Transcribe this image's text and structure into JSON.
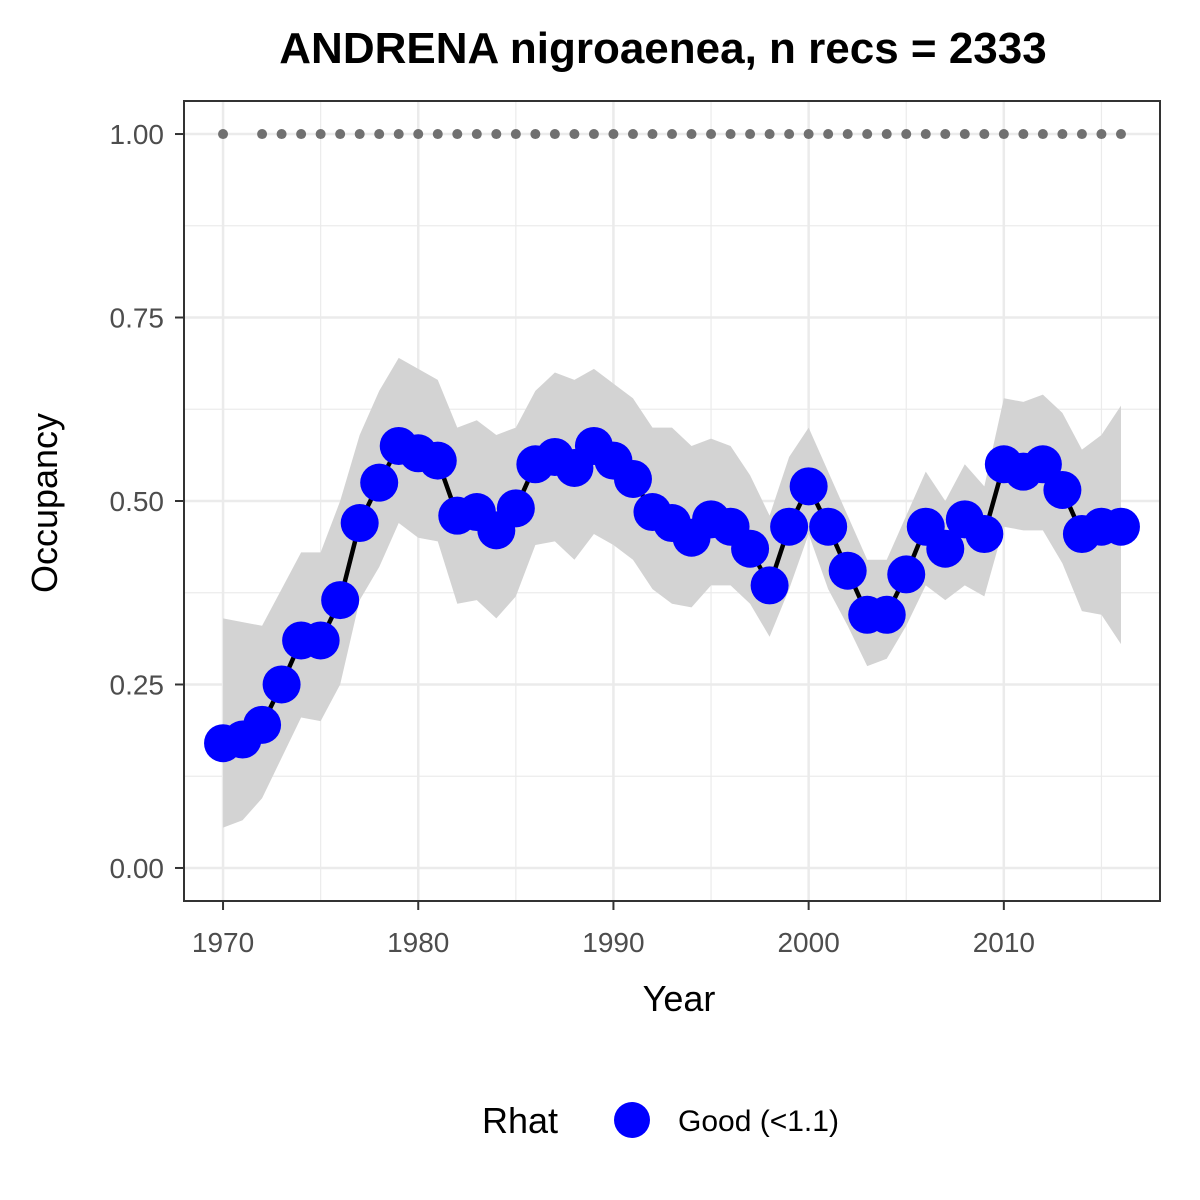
{
  "chart_data": {
    "type": "line",
    "title": "ANDRENA nigroaenea, n recs = 2333",
    "xlabel": "Year",
    "ylabel": "Occupancy",
    "xlim": [
      1968,
      2018
    ],
    "ylim": [
      -0.045,
      1.045
    ],
    "x_ticks": [
      1970,
      1980,
      1990,
      2000,
      2010
    ],
    "x_tick_labels": [
      "1970",
      "1980",
      "1990",
      "2000",
      "2010"
    ],
    "y_ticks": [
      0,
      0.25,
      0.5,
      0.75,
      1.0
    ],
    "y_tick_labels": [
      "0.00",
      "0.25",
      "0.50",
      "0.75",
      "1.00"
    ],
    "grid": true,
    "legend_position": "bottom",
    "legend": {
      "title": "Rhat",
      "items": [
        {
          "label": "Good (<1.1)",
          "color": "#0000ff"
        }
      ]
    },
    "colors": {
      "points": "#0000ff",
      "line": "#000000",
      "ribbon": "#d3d3d3",
      "record_dots": "#707070",
      "grid": "#ebebeb",
      "panel_border": "#333333"
    },
    "x": [
      1970,
      1971,
      1972,
      1973,
      1974,
      1975,
      1976,
      1977,
      1978,
      1979,
      1980,
      1981,
      1982,
      1983,
      1984,
      1985,
      1986,
      1987,
      1988,
      1989,
      1990,
      1991,
      1992,
      1993,
      1994,
      1995,
      1996,
      1997,
      1998,
      1999,
      2000,
      2001,
      2002,
      2003,
      2004,
      2005,
      2006,
      2007,
      2008,
      2009,
      2010,
      2011,
      2012,
      2013,
      2014,
      2015,
      2016
    ],
    "series": [
      {
        "values": [
          0.17,
          0.175,
          0.195,
          0.25,
          0.31,
          0.31,
          0.365,
          0.47,
          0.525,
          0.575,
          0.565,
          0.555,
          0.48,
          0.485,
          0.46,
          0.49,
          0.55,
          0.56,
          0.545,
          0.575,
          0.555,
          0.53,
          0.485,
          0.47,
          0.45,
          0.475,
          0.465,
          0.435,
          0.385,
          0.465,
          0.52,
          0.465,
          0.405,
          0.345,
          0.345,
          0.4,
          0.465,
          0.435,
          0.475,
          0.455,
          0.55,
          0.54,
          0.55,
          0.515,
          0.455,
          0.465,
          0.465
        ]
      }
    ],
    "ribbon": {
      "upper": [
        0.34,
        0.335,
        0.33,
        0.38,
        0.43,
        0.43,
        0.5,
        0.59,
        0.65,
        0.695,
        0.68,
        0.665,
        0.6,
        0.61,
        0.59,
        0.6,
        0.65,
        0.675,
        0.665,
        0.68,
        0.66,
        0.64,
        0.6,
        0.6,
        0.575,
        0.585,
        0.575,
        0.535,
        0.48,
        0.56,
        0.6,
        0.54,
        0.48,
        0.42,
        0.42,
        0.48,
        0.54,
        0.5,
        0.55,
        0.52,
        0.64,
        0.635,
        0.645,
        0.62,
        0.57,
        0.59,
        0.63
      ],
      "lower": [
        0.055,
        0.065,
        0.095,
        0.15,
        0.205,
        0.2,
        0.25,
        0.365,
        0.41,
        0.47,
        0.45,
        0.445,
        0.36,
        0.365,
        0.34,
        0.37,
        0.44,
        0.445,
        0.42,
        0.455,
        0.44,
        0.42,
        0.38,
        0.36,
        0.355,
        0.385,
        0.385,
        0.36,
        0.315,
        0.38,
        0.455,
        0.38,
        0.33,
        0.275,
        0.285,
        0.33,
        0.385,
        0.365,
        0.385,
        0.37,
        0.465,
        0.46,
        0.46,
        0.415,
        0.35,
        0.345,
        0.305
      ]
    },
    "record_dots": {
      "y": 1.0,
      "years": [
        1970,
        1972,
        1973,
        1974,
        1975,
        1976,
        1977,
        1978,
        1979,
        1980,
        1981,
        1982,
        1983,
        1984,
        1985,
        1986,
        1987,
        1988,
        1989,
        1990,
        1991,
        1992,
        1993,
        1994,
        1995,
        1996,
        1997,
        1998,
        1999,
        2000,
        2001,
        2002,
        2003,
        2004,
        2005,
        2006,
        2007,
        2008,
        2009,
        2010,
        2011,
        2012,
        2013,
        2014,
        2015,
        2016
      ]
    }
  }
}
